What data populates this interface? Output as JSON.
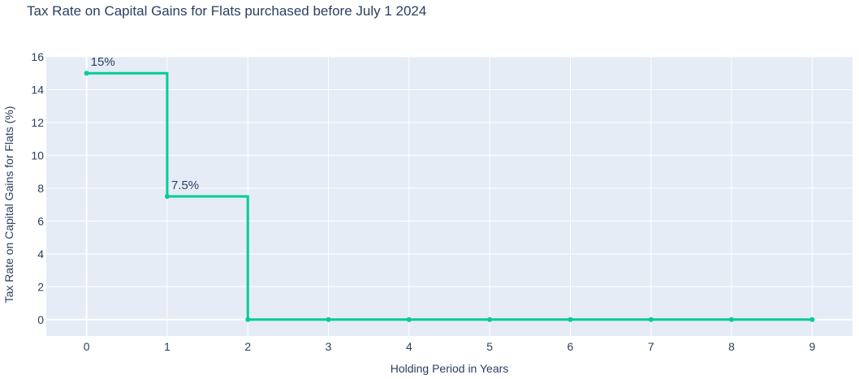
{
  "chart_data": {
    "type": "line",
    "title": "Tax Rate on Capital Gains for Flats purchased before July 1 2024",
    "xlabel": "Holding Period in Years",
    "ylabel": "Tax Rate on Capital Gains for Flats (%)",
    "x": [
      0,
      1,
      2,
      3,
      4,
      5,
      6,
      7,
      8,
      9
    ],
    "series": [
      {
        "values": [
          15,
          7.5,
          0,
          0,
          0,
          0,
          0,
          0,
          0,
          0
        ]
      }
    ],
    "line_shape": "step (hold previous value until next x)",
    "xlim": [
      -0.5,
      9.5
    ],
    "ylim": [
      -1,
      16
    ],
    "x_ticks": [
      "0",
      "1",
      "2",
      "3",
      "4",
      "5",
      "6",
      "7",
      "8",
      "9"
    ],
    "y_ticks": [
      "0",
      "2",
      "4",
      "6",
      "8",
      "10",
      "12",
      "14",
      "16"
    ],
    "annotations": [
      {
        "x": 0,
        "y": 15,
        "text": "15%"
      },
      {
        "x": 1,
        "y": 7.5,
        "text": "7.5%"
      }
    ],
    "grid": true,
    "colors": {
      "line": "#00cc96",
      "plot_bg": "#e5ecf6",
      "grid": "#ffffff",
      "text": "#2a3f5f"
    }
  }
}
